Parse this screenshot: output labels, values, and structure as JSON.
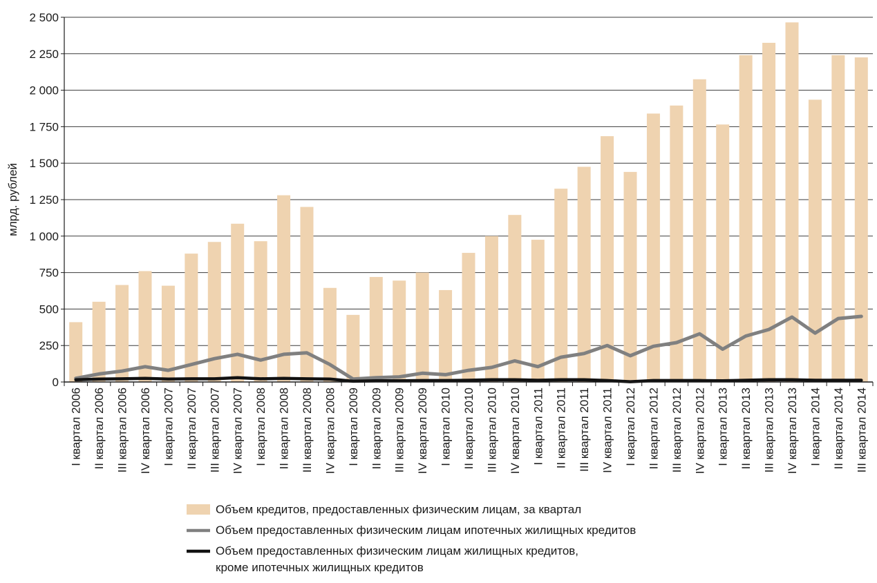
{
  "chart_data": {
    "type": "bar",
    "ylabel": "млрд. рублей",
    "xlabel": "",
    "ylim": [
      0,
      2500
    ],
    "yticks": [
      0,
      250,
      500,
      750,
      1000,
      1250,
      1500,
      1750,
      2000,
      2250,
      2500
    ],
    "ytick_labels": [
      "0",
      "250",
      "500",
      "750",
      "1 000",
      "1 250",
      "1 500",
      "1 750",
      "2 000",
      "2 250",
      "2 500"
    ],
    "grid": true,
    "legend_position": "bottom",
    "categories": [
      "I квартал 2006",
      "II квартал 2006",
      "III квартал 2006",
      "IV квартал 2006",
      "I квартал 2007",
      "II квартал 2007",
      "III квартал 2007",
      "IV квартал 2007",
      "I квартал 2008",
      "II квартал 2008",
      "III квартал 2008",
      "IV квартал 2008",
      "I квартал 2009",
      "II квартал 2009",
      "III квартал 2009",
      "IV квартал 2009",
      "I квартал 2010",
      "II квартал 2010",
      "III квартал 2010",
      "IV квартал 2010",
      "I квартал 2011",
      "II квартал 2011",
      "III квартал 2011",
      "IV квартал 2011",
      "I квартал 2012",
      "II квартал 2012",
      "III квартал 2012",
      "IV квартал 2012",
      "I квартал 2013",
      "II квартал 2013",
      "III квартал 2013",
      "IV квартал 2013",
      "I квартал 2014",
      "II квартал 2014",
      "III квартал 2014"
    ],
    "series": [
      {
        "name": "Объем кредитов, предоставленных физическим лицам, за квартал",
        "kind": "bar",
        "color": "#efd3b0",
        "values": [
          410,
          550,
          665,
          760,
          660,
          880,
          960,
          1085,
          965,
          1280,
          1200,
          645,
          460,
          720,
          695,
          750,
          630,
          885,
          1000,
          1145,
          975,
          1325,
          1475,
          1685,
          1440,
          1840,
          1895,
          2075,
          1765,
          2240,
          2325,
          2465,
          1935,
          2240,
          2225
        ]
      },
      {
        "name": "Объем предоставленных физическим лицам ипотечных жилищных кредитов",
        "kind": "line",
        "color": "#808080",
        "values": [
          25,
          55,
          75,
          105,
          80,
          120,
          160,
          190,
          150,
          190,
          200,
          120,
          20,
          30,
          35,
          60,
          50,
          80,
          100,
          145,
          105,
          170,
          195,
          250,
          180,
          245,
          270,
          330,
          225,
          315,
          360,
          445,
          335,
          435,
          450
        ]
      },
      {
        "name": "Объем предоставленных физическим лицам жилищных кредитов, кроме ипотечных жилищных кредитов",
        "kind": "line",
        "color": "#111111",
        "values": [
          15,
          20,
          22,
          25,
          20,
          22,
          22,
          30,
          22,
          25,
          22,
          20,
          5,
          8,
          8,
          10,
          10,
          12,
          15,
          15,
          12,
          15,
          15,
          10,
          2,
          10,
          10,
          10,
          8,
          12,
          15,
          15,
          12,
          12,
          12
        ]
      }
    ]
  },
  "legend": {
    "items": [
      {
        "label_lines": [
          "Объем кредитов, предоставленных физическим лицам, за квартал"
        ],
        "swatch": "box",
        "color": "#efd3b0"
      },
      {
        "label_lines": [
          "Объем предоставленных физическим лицам ипотечных жилищных кредитов"
        ],
        "swatch": "line",
        "color": "#808080"
      },
      {
        "label_lines": [
          "Объем предоставленных физическим лицам жилищных кредитов,",
          "кроме ипотечных жилищных кредитов"
        ],
        "swatch": "line",
        "color": "#111111"
      }
    ]
  }
}
